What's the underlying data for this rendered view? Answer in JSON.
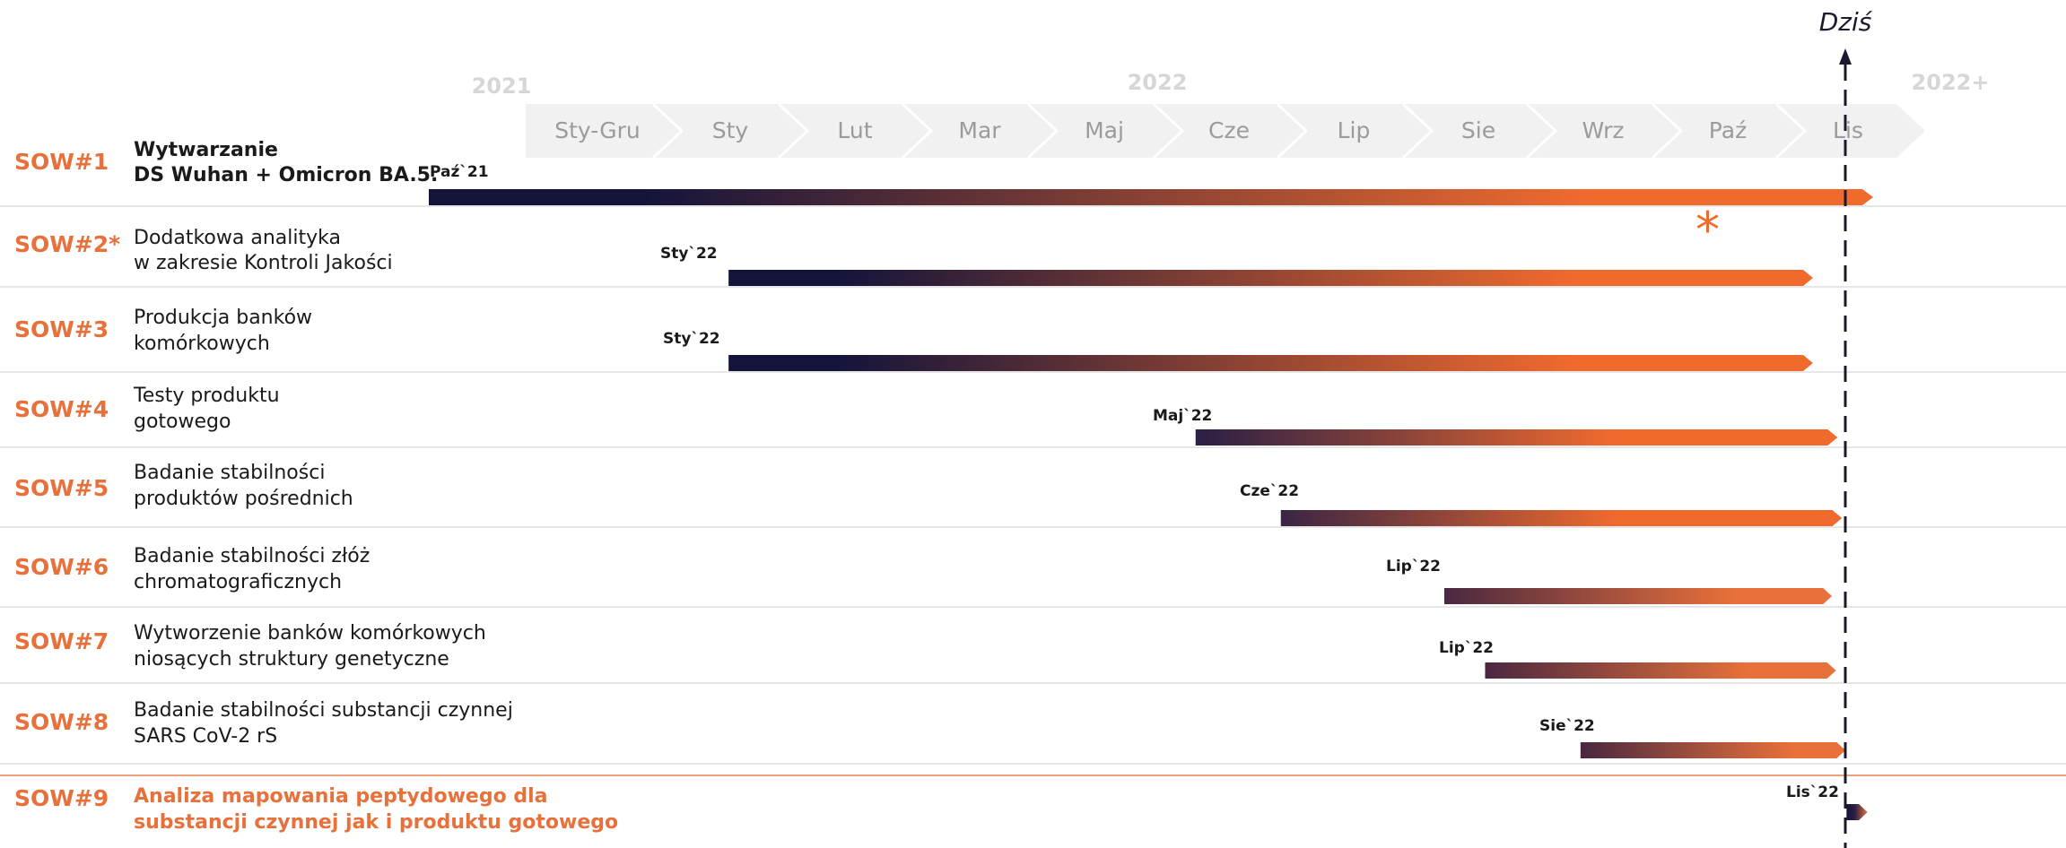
{
  "timeline": {
    "years": [
      "2021",
      "2022",
      "2022+"
    ],
    "months": [
      "Sty-Gru",
      "Sty",
      "Lut",
      "Mar",
      "Maj",
      "Cze",
      "Lip",
      "Sie",
      "Wrz",
      "Paź",
      "Lis"
    ]
  },
  "today": {
    "label": "Dziś"
  },
  "asterisk": "*",
  "rows": [
    {
      "code": "SOW#1",
      "desc1": "Wytwarzanie",
      "desc2": "DS Wuhan + Omicron BA.5.",
      "start": "Paź`21"
    },
    {
      "code": "SOW#2*",
      "desc1": "Dodatkowa analityka",
      "desc2": "w zakresie Kontroli Jakości",
      "start": "Sty`22"
    },
    {
      "code": "SOW#3",
      "desc1": "Produkcja banków",
      "desc2": "komórkowych",
      "start": "Sty`22"
    },
    {
      "code": "SOW#4",
      "desc1": "Testy produktu",
      "desc2": "gotowego",
      "start": "Maj`22"
    },
    {
      "code": "SOW#5",
      "desc1": "Badanie stabilności",
      "desc2": "produktów pośrednich",
      "start": "Cze`22"
    },
    {
      "code": "SOW#6",
      "desc1": "Badanie stabilności złóż",
      "desc2": "chromatograficznych",
      "start": "Lip`22"
    },
    {
      "code": "SOW#7",
      "desc1": "Wytworzenie banków komórkowych",
      "desc2": "niosących struktury genetyczne",
      "start": "Lip`22"
    },
    {
      "code": "SOW#8",
      "desc1": "Badanie stabilności substancji czynnej",
      "desc2": "SARS CoV-2 rS",
      "start": "Sie`22"
    },
    {
      "code": "SOW#9",
      "desc1": "Analiza mapowania peptydowego dla",
      "desc2": "substancji czynnej jak i produktu gotowego",
      "start": "Lis`22"
    }
  ],
  "colors": {
    "accent": "#e8703a",
    "bar_dark": "#14143a",
    "bar_orange": "#f06a2e",
    "today": "#1a1a2e"
  }
}
